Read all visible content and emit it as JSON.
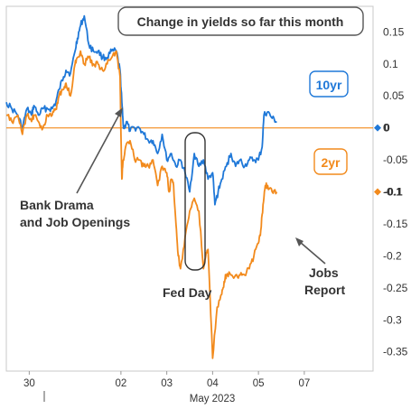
{
  "chart_data": {
    "type": "line",
    "title": "Change in yields so far this month",
    "xlabel": "May 2023",
    "ylabel": "",
    "x_ticks": [
      "30",
      "02",
      "03",
      "04",
      "05",
      "07"
    ],
    "x_tick_positions": [
      0.5,
      2.5,
      3.5,
      4.5,
      5.5,
      6.5
    ],
    "xlim": [
      0,
      8
    ],
    "ylim": [
      -0.38,
      0.19
    ],
    "y_ticks": [
      0.15,
      0.1,
      0.05,
      0,
      -0.05,
      -0.1,
      -0.15,
      -0.2,
      -0.25,
      -0.3,
      -0.35
    ],
    "y_tick_labels": [
      "0.15",
      "0.1",
      "0.05",
      "0",
      "-0.05",
      "-0.1",
      "-0.15",
      "-0.2",
      "-0.25",
      "-0.3",
      "-0.35"
    ],
    "reference_line": 0,
    "series": [
      {
        "name": "10yr",
        "color": "#1f78d8",
        "last_value": 0,
        "x": [
          0,
          0.12,
          0.25,
          0.35,
          0.45,
          0.55,
          0.6,
          0.7,
          0.8,
          0.9,
          1.0,
          1.08,
          1.15,
          1.25,
          1.3,
          1.4,
          1.5,
          1.55,
          1.62,
          1.7,
          1.8,
          1.9,
          2.0,
          2.1,
          2.2,
          2.3,
          2.4,
          2.48,
          2.52,
          2.55,
          2.58,
          2.62,
          2.7,
          2.8,
          2.9,
          3.0,
          3.1,
          3.2,
          3.3,
          3.4,
          3.5,
          3.6,
          3.7,
          3.8,
          3.9,
          4.0,
          4.1,
          4.2,
          4.3,
          4.4,
          4.5,
          4.55,
          4.62,
          4.7,
          4.8,
          4.9,
          5.0,
          5.1,
          5.2,
          5.3,
          5.4,
          5.5,
          5.58,
          5.62,
          5.7,
          5.8,
          5.9
        ],
        "values": [
          0.04,
          0.03,
          0.02,
          0.0,
          0.03,
          0.02,
          0.035,
          0.02,
          0.03,
          0.03,
          0.03,
          0.04,
          0.06,
          0.08,
          0.09,
          0.085,
          0.12,
          0.14,
          0.16,
          0.175,
          0.13,
          0.12,
          0.12,
          0.11,
          0.11,
          0.12,
          0.12,
          0.09,
          0.04,
          0.005,
          0.0,
          0.01,
          -0.005,
          0.0,
          0.0,
          -0.01,
          -0.02,
          -0.02,
          -0.04,
          -0.01,
          -0.05,
          -0.04,
          -0.06,
          -0.05,
          -0.07,
          -0.1,
          -0.04,
          -0.06,
          -0.05,
          -0.08,
          -0.07,
          -0.12,
          -0.1,
          -0.08,
          -0.06,
          -0.04,
          -0.06,
          -0.05,
          -0.06,
          -0.05,
          -0.05,
          -0.05,
          -0.03,
          0.02,
          0.025,
          0.015,
          0.01
        ]
      },
      {
        "name": "2yr",
        "color": "#f28a1c",
        "last_value": -0.1,
        "x": [
          0,
          0.12,
          0.25,
          0.35,
          0.45,
          0.55,
          0.6,
          0.7,
          0.8,
          0.9,
          1.0,
          1.08,
          1.15,
          1.25,
          1.3,
          1.4,
          1.5,
          1.55,
          1.62,
          1.7,
          1.8,
          1.9,
          2.0,
          2.1,
          2.2,
          2.3,
          2.4,
          2.48,
          2.5,
          2.52,
          2.55,
          2.6,
          2.7,
          2.8,
          2.9,
          3.0,
          3.1,
          3.2,
          3.3,
          3.4,
          3.5,
          3.55,
          3.6,
          3.65,
          3.7,
          3.75,
          3.8,
          3.9,
          4.0,
          4.1,
          4.2,
          4.3,
          4.35,
          4.4,
          4.5,
          4.6,
          4.7,
          4.75,
          4.8,
          4.9,
          5.0,
          5.1,
          5.2,
          5.3,
          5.4,
          5.5,
          5.55,
          5.6,
          5.65,
          5.7,
          5.8,
          5.9
        ],
        "values": [
          0.02,
          0.01,
          0.02,
          -0.01,
          0.02,
          0.01,
          0.02,
          0.01,
          0.0,
          0.02,
          0.02,
          0.03,
          0.05,
          0.06,
          0.07,
          0.05,
          0.1,
          0.11,
          0.12,
          0.1,
          0.11,
          0.1,
          0.1,
          0.09,
          0.1,
          0.11,
          0.12,
          0.08,
          -0.01,
          -0.08,
          -0.05,
          -0.03,
          -0.02,
          -0.05,
          -0.05,
          -0.06,
          -0.06,
          -0.05,
          -0.09,
          -0.06,
          -0.07,
          -0.1,
          -0.08,
          -0.09,
          -0.15,
          -0.2,
          -0.22,
          -0.17,
          -0.13,
          -0.11,
          -0.13,
          -0.22,
          -0.2,
          -0.19,
          -0.36,
          -0.28,
          -0.26,
          -0.24,
          -0.23,
          -0.23,
          -0.23,
          -0.23,
          -0.23,
          -0.22,
          -0.2,
          -0.18,
          -0.16,
          -0.12,
          -0.09,
          -0.09,
          -0.1,
          -0.1
        ]
      }
    ],
    "annotations": [
      {
        "lines": [
          "Bank Drama",
          "and Job Openings"
        ]
      },
      {
        "lines": [
          "Fed Day"
        ]
      },
      {
        "lines": [
          "Jobs",
          "Report"
        ]
      }
    ],
    "grid": false,
    "legend": "inline labels"
  },
  "legend_labels": {
    "tenyr": "10yr",
    "twoyr": "2yr"
  },
  "last_value_labels": {
    "tenyr": "0",
    "twoyr": "-0.1"
  }
}
